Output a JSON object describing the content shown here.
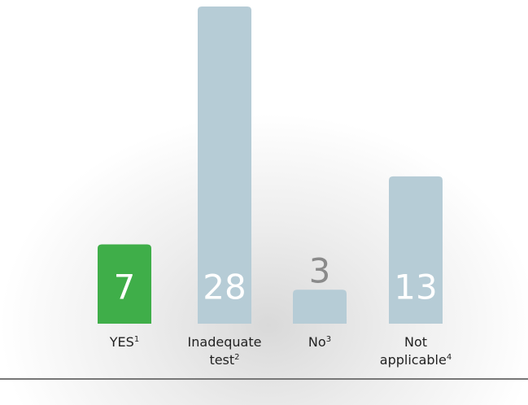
{
  "chart_data": {
    "type": "bar",
    "categories": [
      "YES",
      "Inadequate test",
      "No",
      "Not applicable"
    ],
    "category_notes": [
      "1",
      "2",
      "3",
      "4"
    ],
    "values": [
      7,
      28,
      3,
      13
    ],
    "colors": [
      "#3fae49",
      "#b6ccd6",
      "#b6ccd6",
      "#b6ccd6"
    ],
    "ylim": [
      0,
      28
    ]
  }
}
